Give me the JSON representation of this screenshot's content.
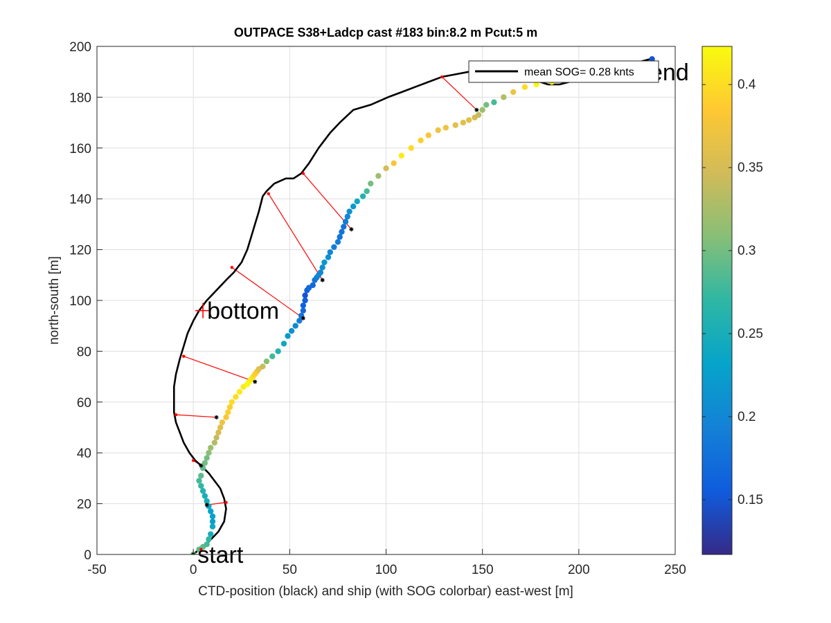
{
  "chart_data": {
    "type": "scatter",
    "title": "OUTPACE S38+Ladcp cast #183 bin:8.2 m  Pcut:5 m",
    "xlabel": "CTD-position (black) and ship (with SOG colorbar) east-west [m]",
    "ylabel": "north-south [m]",
    "xlim": [
      -50,
      250
    ],
    "ylim": [
      0,
      200
    ],
    "xticks": [
      -50,
      0,
      50,
      100,
      150,
      200,
      250
    ],
    "yticks": [
      0,
      20,
      40,
      60,
      80,
      100,
      120,
      140,
      160,
      180,
      200
    ],
    "grid": true,
    "colorbar": {
      "range": [
        0.117,
        0.423
      ],
      "ticks": [
        0.15,
        0.2,
        0.25,
        0.3,
        0.35,
        0.4
      ],
      "colormap": "parula"
    },
    "legend": {
      "position": "top-right",
      "label": "mean SOG=  0.28 knts"
    },
    "annotations": [
      {
        "text": "start",
        "x": 0,
        "y": 0
      },
      {
        "text": "bottom",
        "x": 5,
        "y": 96
      },
      {
        "text": "end",
        "x": 238,
        "y": 195
      }
    ],
    "ctd_track": [
      [
        0,
        0
      ],
      [
        3,
        2
      ],
      [
        8,
        5
      ],
      [
        13,
        9
      ],
      [
        16,
        13
      ],
      [
        17,
        18
      ],
      [
        16,
        22
      ],
      [
        14,
        26
      ],
      [
        11,
        29
      ],
      [
        8,
        32
      ],
      [
        4,
        35
      ],
      [
        1,
        37
      ],
      [
        -2,
        40
      ],
      [
        -5,
        44
      ],
      [
        -7,
        48
      ],
      [
        -9,
        52
      ],
      [
        -10,
        56
      ],
      [
        -10,
        61
      ],
      [
        -10,
        66
      ],
      [
        -9,
        71
      ],
      [
        -7,
        77
      ],
      [
        -5,
        82
      ],
      [
        -3,
        87
      ],
      [
        0,
        92
      ],
      [
        3,
        96
      ],
      [
        7,
        100
      ],
      [
        12,
        104
      ],
      [
        17,
        108
      ],
      [
        21,
        111
      ],
      [
        25,
        115
      ],
      [
        28,
        120
      ],
      [
        30,
        125
      ],
      [
        32,
        130
      ],
      [
        34,
        135
      ],
      [
        36,
        141
      ],
      [
        38,
        143
      ],
      [
        42,
        146
      ],
      [
        48,
        148
      ],
      [
        52,
        148
      ],
      [
        56,
        150
      ],
      [
        60,
        154
      ],
      [
        65,
        160
      ],
      [
        71,
        166
      ],
      [
        76,
        170
      ],
      [
        83,
        175
      ],
      [
        92,
        177
      ],
      [
        101,
        180
      ],
      [
        108,
        182
      ],
      [
        115,
        184
      ],
      [
        122,
        186
      ],
      [
        129,
        188
      ],
      [
        136,
        189
      ],
      [
        143,
        190
      ],
      [
        152,
        190
      ],
      [
        160,
        189
      ],
      [
        168,
        188
      ],
      [
        174,
        187
      ],
      [
        180,
        186
      ],
      [
        184,
        185
      ],
      [
        190,
        185
      ],
      [
        200,
        187
      ],
      [
        210,
        189
      ],
      [
        222,
        192
      ],
      [
        232,
        194
      ],
      [
        237,
        195
      ]
    ],
    "ship_track": {
      "x": [
        0,
        3,
        5,
        7,
        8,
        9,
        10,
        10,
        10,
        9,
        8,
        7,
        6,
        5,
        4,
        3,
        4,
        5,
        6,
        7,
        8,
        9,
        11,
        12,
        13,
        14,
        15,
        17,
        18,
        19,
        20,
        22,
        24,
        26,
        28,
        29,
        30,
        31,
        32,
        33,
        34,
        36,
        38,
        41,
        44,
        47,
        49,
        51,
        53,
        55,
        56,
        57,
        57,
        58,
        58,
        59,
        60,
        62,
        63,
        64,
        65,
        66,
        67,
        68,
        70,
        71,
        73,
        75,
        76,
        77,
        78,
        79,
        80,
        81,
        83,
        85,
        88,
        90,
        92,
        96,
        100,
        104,
        108,
        113,
        118,
        122,
        127,
        131,
        136,
        140,
        143,
        146,
        148,
        150,
        152,
        156,
        161,
        166,
        172,
        178,
        186,
        194,
        202,
        210,
        218,
        226,
        233,
        238
      ],
      "y": [
        0,
        2,
        3,
        4,
        6,
        8,
        11,
        13,
        15,
        17,
        19,
        21,
        23,
        25,
        27,
        29,
        31,
        34,
        36,
        38,
        40,
        42,
        44,
        46,
        48,
        50,
        52,
        54,
        56,
        58,
        60,
        62,
        64,
        66,
        67,
        68,
        69,
        70,
        71,
        72,
        73,
        74,
        76,
        78,
        80,
        83,
        86,
        88,
        90,
        92,
        94,
        96,
        98,
        100,
        102,
        104,
        105,
        106,
        108,
        109,
        110,
        111,
        113,
        115,
        117,
        119,
        121,
        123,
        125,
        127,
        129,
        131,
        133,
        135,
        137,
        139,
        141,
        143,
        146,
        149,
        152,
        154,
        157,
        160,
        163,
        165,
        167,
        168,
        169,
        170,
        171,
        172,
        173,
        175,
        177,
        178,
        180,
        182,
        184,
        185,
        186,
        187,
        188,
        189,
        190,
        192,
        193,
        195
      ],
      "sog": [
        0.3,
        0.29,
        0.29,
        0.28,
        0.27,
        0.25,
        0.24,
        0.23,
        0.23,
        0.23,
        0.24,
        0.25,
        0.25,
        0.26,
        0.27,
        0.28,
        0.29,
        0.29,
        0.3,
        0.3,
        0.31,
        0.32,
        0.33,
        0.34,
        0.35,
        0.36,
        0.37,
        0.38,
        0.39,
        0.39,
        0.4,
        0.4,
        0.41,
        0.41,
        0.42,
        0.42,
        0.41,
        0.4,
        0.39,
        0.38,
        0.36,
        0.34,
        0.31,
        0.28,
        0.26,
        0.24,
        0.22,
        0.21,
        0.2,
        0.19,
        0.18,
        0.17,
        0.16,
        0.16,
        0.15,
        0.16,
        0.17,
        0.17,
        0.18,
        0.19,
        0.2,
        0.2,
        0.21,
        0.22,
        0.21,
        0.2,
        0.19,
        0.19,
        0.18,
        0.18,
        0.18,
        0.19,
        0.2,
        0.21,
        0.22,
        0.24,
        0.26,
        0.28,
        0.3,
        0.32,
        0.35,
        0.38,
        0.41,
        0.4,
        0.39,
        0.38,
        0.37,
        0.37,
        0.36,
        0.36,
        0.36,
        0.35,
        0.34,
        0.32,
        0.3,
        0.28,
        0.33,
        0.37,
        0.4,
        0.42,
        0.42,
        0.41,
        0.4,
        0.38,
        0.35,
        0.28,
        0.2,
        0.15
      ]
    },
    "ctd_ship_links": [
      [
        [
          4,
          2
        ],
        [
          0,
          0
        ]
      ],
      [
        [
          17,
          20.5
        ],
        [
          7,
          19.5
        ]
      ],
      [
        [
          0,
          37
        ],
        [
          4,
          35
        ]
      ],
      [
        [
          -9,
          55
        ],
        [
          12,
          54
        ]
      ],
      [
        [
          -5,
          78
        ],
        [
          32,
          68
        ]
      ],
      [
        [
          20,
          113
        ],
        [
          57,
          93
        ]
      ],
      [
        [
          39,
          142
        ],
        [
          67,
          108
        ]
      ],
      [
        [
          57,
          150
        ],
        [
          82,
          128
        ]
      ],
      [
        [
          129,
          188
        ],
        [
          147,
          175
        ]
      ]
    ]
  }
}
